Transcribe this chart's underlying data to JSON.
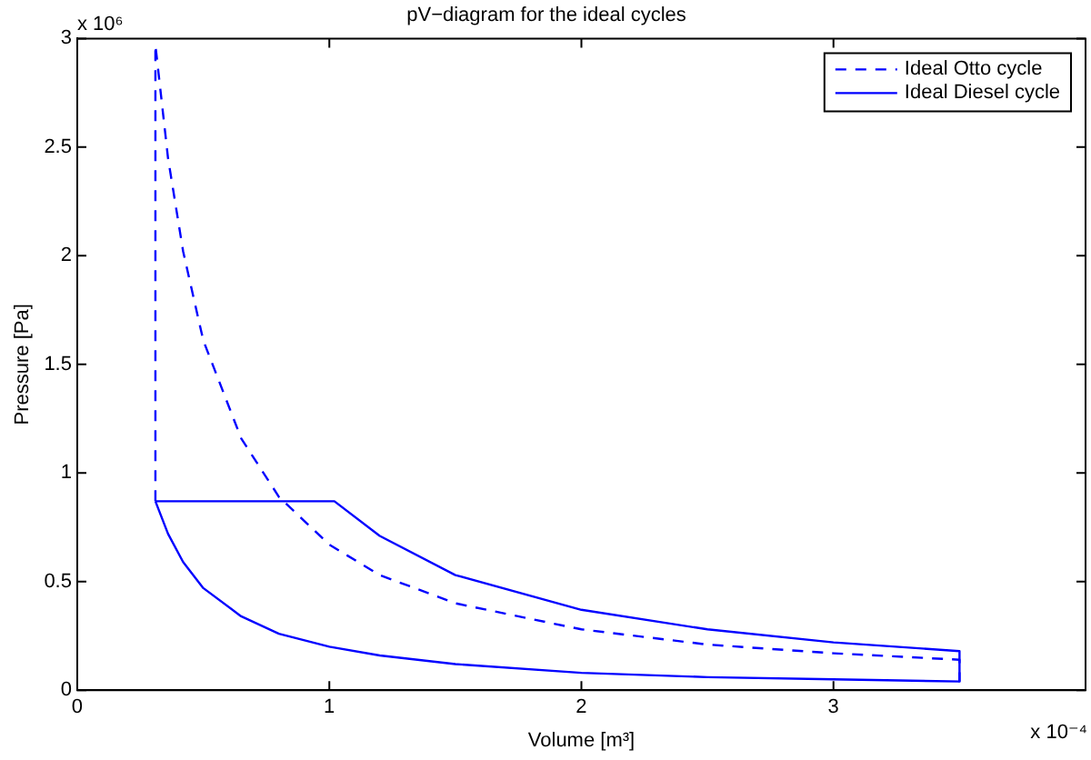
{
  "chart_data": {
    "type": "line",
    "title": "pV−diagram for the ideal cycles",
    "xlabel": "Volume [m³]",
    "ylabel": "Pressure [Pa]",
    "xlim": [
      0,
      4
    ],
    "xticks": [
      0,
      1,
      2,
      3,
      {
        "value": 4,
        "label": null
      }
    ],
    "ylim": [
      0,
      3
    ],
    "yticks": [
      0,
      0.5,
      1,
      1.5,
      2,
      2.5,
      3
    ],
    "grid": false,
    "legend": "top right",
    "marker": "none",
    "annotations": [
      "x 10⁶",
      "x 10⁻⁴"
    ],
    "series": [
      {
        "name": "Ideal Otto cycle",
        "color": "#0000ff",
        "line_style": "dashed",
        "x": [
          0.31,
          0.31,
          0.36,
          0.42,
          0.5,
          0.65,
          0.8,
          1,
          1.2,
          1.5,
          2,
          2.5,
          3,
          3.5,
          3.5
        ],
        "values": [
          0.87,
          2.97,
          2.45,
          2.02,
          1.61,
          1.16,
          0.89,
          0.67,
          0.53,
          0.4,
          0.28,
          0.21,
          0.17,
          0.14,
          0.04
        ]
      },
      {
        "name": "Ideal Diesel cycle",
        "color": "#0000ff",
        "line_style": "solid",
        "x": [
          0.31,
          1.02,
          1.2,
          1.5,
          2,
          2.5,
          3,
          3.5,
          3.5
        ],
        "values": [
          0.87,
          0.87,
          0.71,
          0.53,
          0.37,
          0.28,
          0.22,
          0.18,
          0.04
        ]
      },
      {
        "color": "#0000ff",
        "line_style": "solid",
        "x": [
          0.31,
          0.36,
          0.42,
          0.5,
          0.65,
          0.8,
          1,
          1.2,
          1.5,
          2,
          2.5,
          3,
          3.5
        ],
        "values": [
          0.87,
          0.72,
          0.59,
          0.47,
          0.34,
          0.26,
          0.2,
          0.16,
          0.12,
          0.08,
          0.06,
          0.05,
          0.04
        ]
      }
    ]
  }
}
